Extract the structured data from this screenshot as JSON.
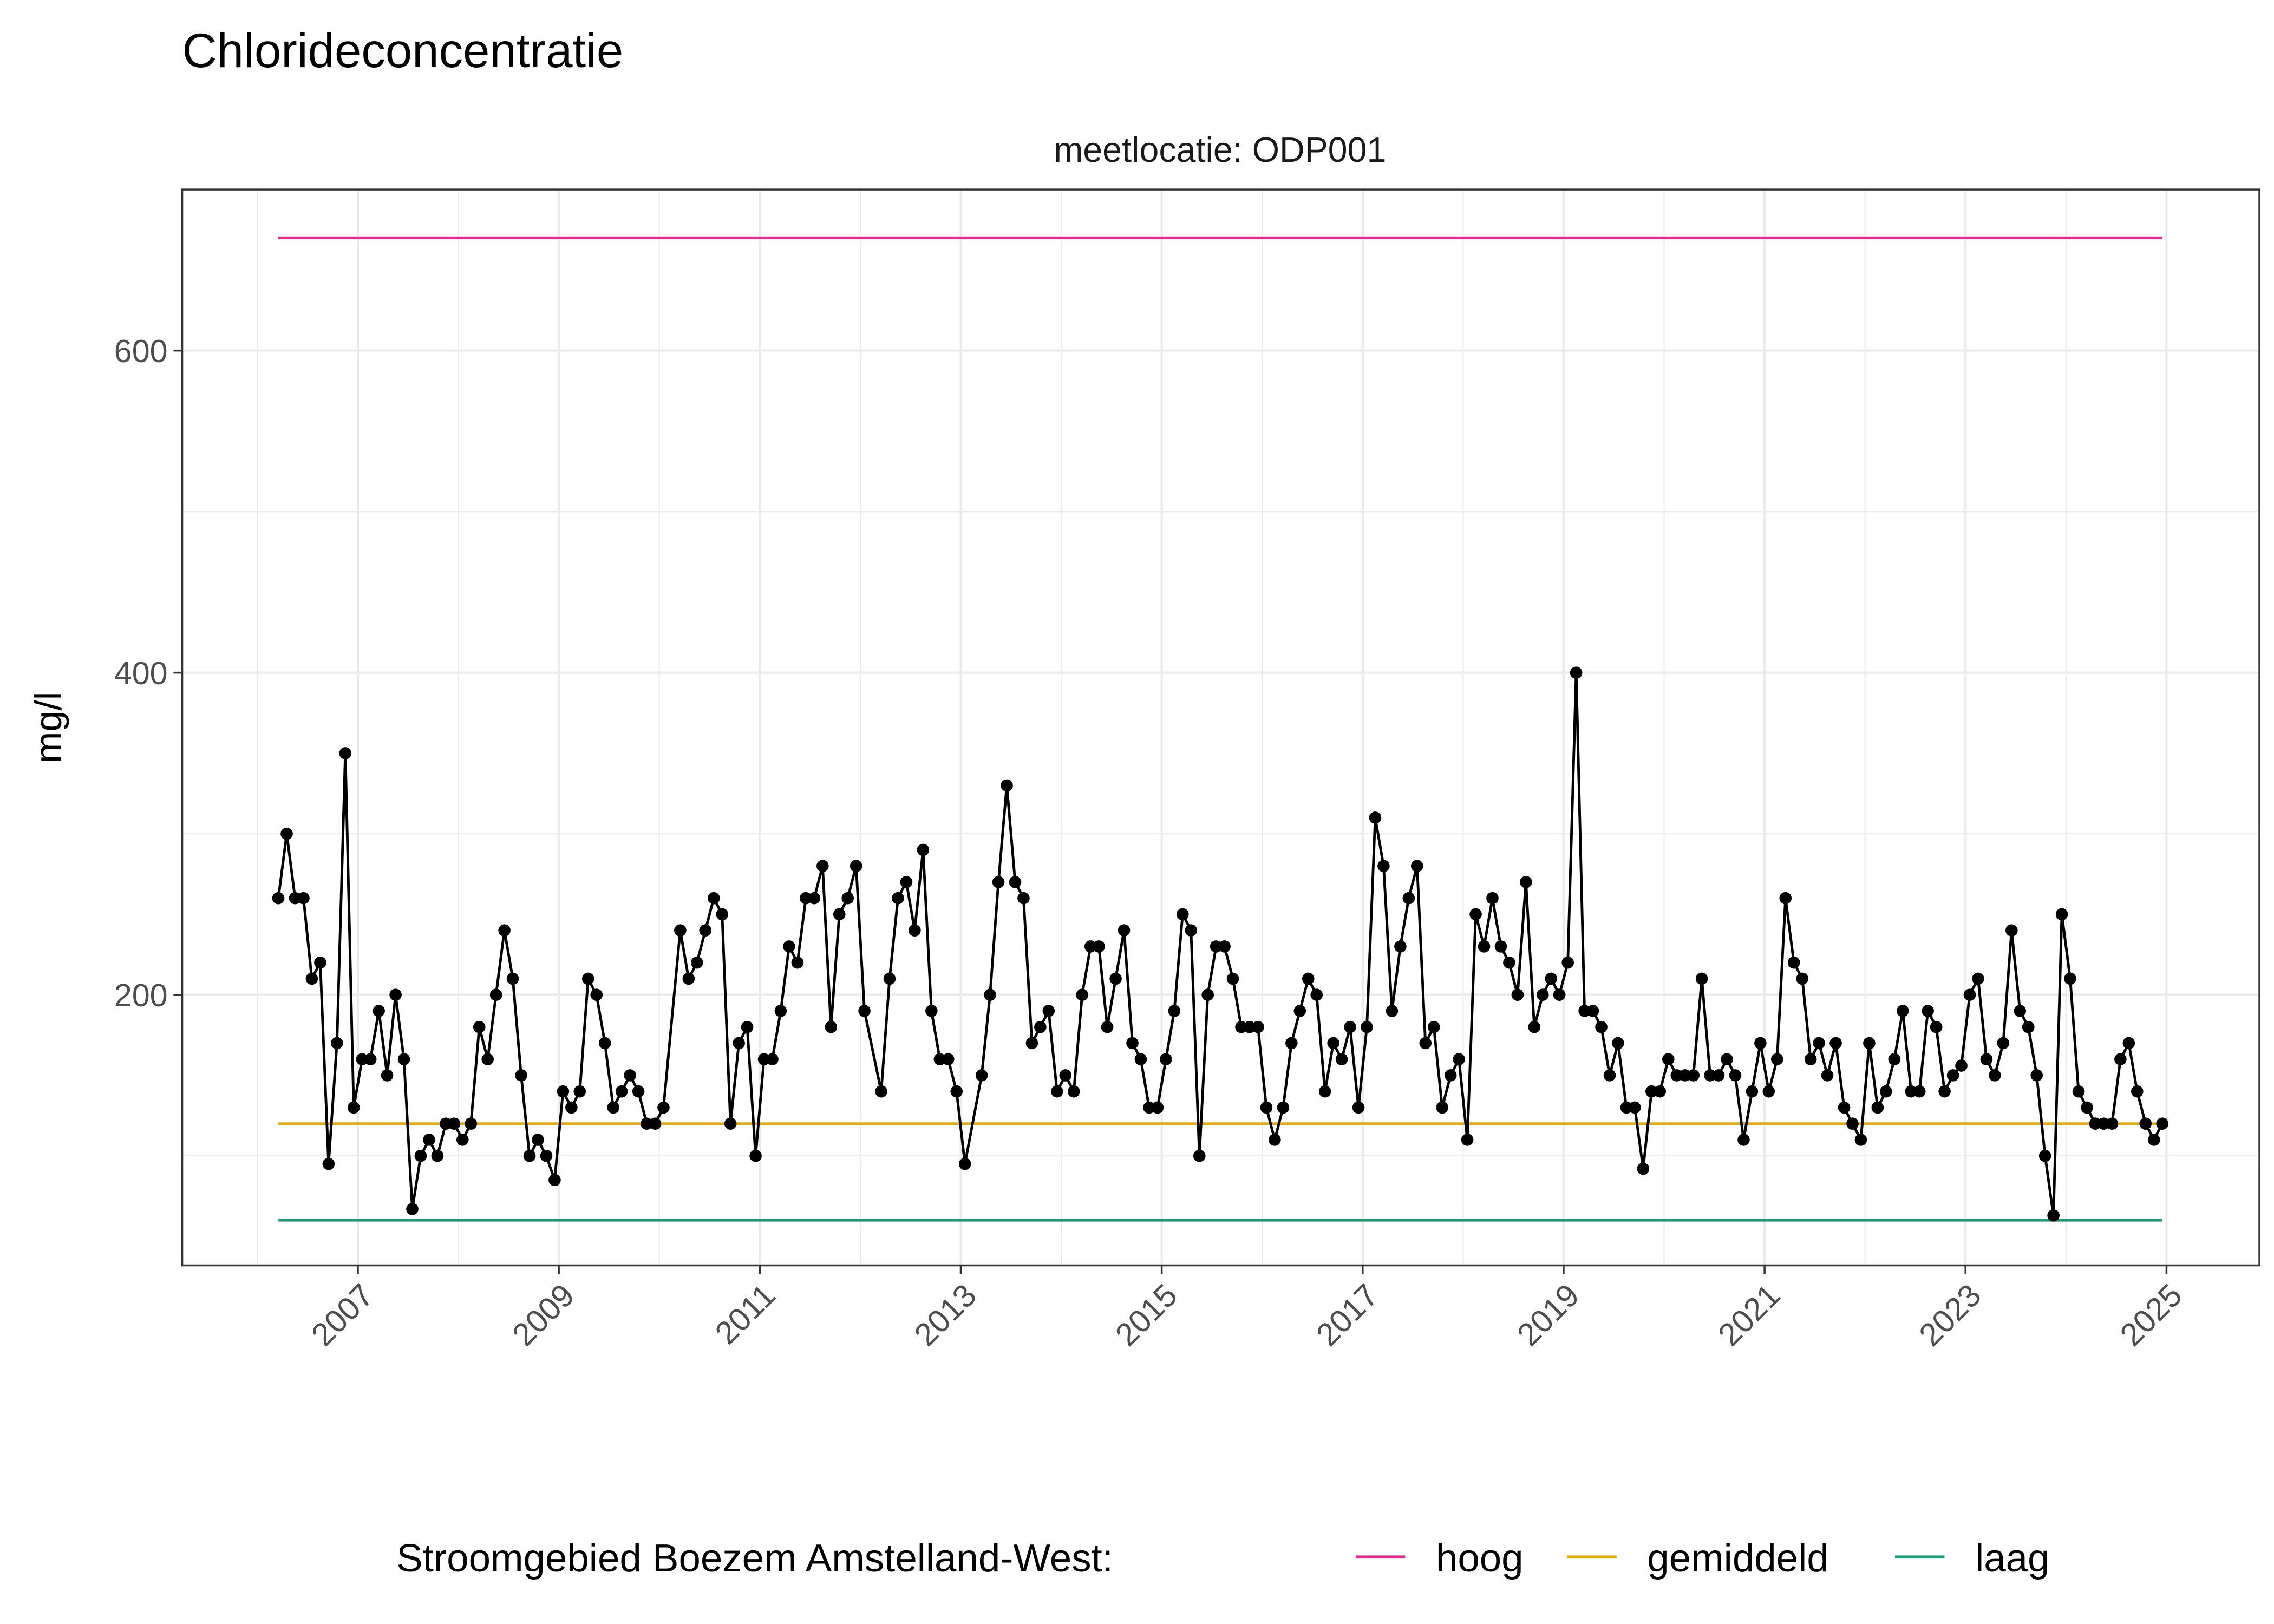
{
  "chart_data": {
    "type": "line",
    "title": "Chlorideconcentratie",
    "facet_label": "meetlocatie: ODP001",
    "xlabel": "",
    "ylabel": "mg/l",
    "xlim": [
      "2005-04",
      "2025-11"
    ],
    "ylim": [
      32,
      700
    ],
    "x_ticks": [
      "2007",
      "2009",
      "2011",
      "2013",
      "2015",
      "2017",
      "2019",
      "2021",
      "2023",
      "2025"
    ],
    "y_ticks": [
      200,
      400,
      600
    ],
    "grid": true,
    "legend": {
      "position": "bottom",
      "title": "Stroomgebied Boezem Amstelland-West:",
      "entries": [
        {
          "label": "hoog",
          "color": "#E7298A"
        },
        {
          "label": "gemiddeld",
          "color": "#E6AB02"
        },
        {
          "label": "laag",
          "color": "#1B9E77"
        }
      ]
    },
    "reference_lines": [
      {
        "name": "hoog",
        "value": 670,
        "color": "#E7298A"
      },
      {
        "name": "gemiddeld",
        "value": 120,
        "color": "#E6AB02"
      },
      {
        "name": "laag",
        "value": 60,
        "color": "#1B9E77"
      }
    ],
    "series": [
      {
        "color": "#000000",
        "points": [
          [
            "2006-03",
            260
          ],
          [
            "2006-04",
            300
          ],
          [
            "2006-05",
            260
          ],
          [
            "2006-06",
            260
          ],
          [
            "2006-07",
            210
          ],
          [
            "2006-08",
            220
          ],
          [
            "2006-09",
            95
          ],
          [
            "2006-10",
            170
          ],
          [
            "2006-11",
            350
          ],
          [
            "2006-12",
            130
          ],
          [
            "2007-01",
            160
          ],
          [
            "2007-02",
            160
          ],
          [
            "2007-03",
            190
          ],
          [
            "2007-04",
            150
          ],
          [
            "2007-05",
            200
          ],
          [
            "2007-06",
            160
          ],
          [
            "2007-07",
            67
          ],
          [
            "2007-08",
            100
          ],
          [
            "2007-09",
            110
          ],
          [
            "2007-10",
            100
          ],
          [
            "2007-11",
            120
          ],
          [
            "2007-12",
            120
          ],
          [
            "2008-01",
            110
          ],
          [
            "2008-02",
            120
          ],
          [
            "2008-03",
            180
          ],
          [
            "2008-04",
            160
          ],
          [
            "2008-05",
            200
          ],
          [
            "2008-06",
            240
          ],
          [
            "2008-07",
            210
          ],
          [
            "2008-08",
            150
          ],
          [
            "2008-09",
            100
          ],
          [
            "2008-10",
            110
          ],
          [
            "2008-11",
            100
          ],
          [
            "2008-12",
            85
          ],
          [
            "2009-01",
            140
          ],
          [
            "2009-02",
            130
          ],
          [
            "2009-03",
            140
          ],
          [
            "2009-04",
            210
          ],
          [
            "2009-05",
            200
          ],
          [
            "2009-06",
            170
          ],
          [
            "2009-07",
            130
          ],
          [
            "2009-08",
            140
          ],
          [
            "2009-09",
            150
          ],
          [
            "2009-10",
            140
          ],
          [
            "2009-11",
            120
          ],
          [
            "2009-12",
            120
          ],
          [
            "2010-01",
            130
          ],
          [
            "2010-03",
            240
          ],
          [
            "2010-04",
            210
          ],
          [
            "2010-05",
            220
          ],
          [
            "2010-06",
            240
          ],
          [
            "2010-07",
            260
          ],
          [
            "2010-08",
            250
          ],
          [
            "2010-09",
            120
          ],
          [
            "2010-10",
            170
          ],
          [
            "2010-11",
            180
          ],
          [
            "2010-12",
            100
          ],
          [
            "2011-01",
            160
          ],
          [
            "2011-02",
            160
          ],
          [
            "2011-03",
            190
          ],
          [
            "2011-04",
            230
          ],
          [
            "2011-05",
            220
          ],
          [
            "2011-06",
            260
          ],
          [
            "2011-07",
            260
          ],
          [
            "2011-08",
            280
          ],
          [
            "2011-09",
            180
          ],
          [
            "2011-10",
            250
          ],
          [
            "2011-11",
            260
          ],
          [
            "2011-12",
            280
          ],
          [
            "2012-01",
            190
          ],
          [
            "2012-03",
            140
          ],
          [
            "2012-04",
            210
          ],
          [
            "2012-05",
            260
          ],
          [
            "2012-06",
            270
          ],
          [
            "2012-07",
            240
          ],
          [
            "2012-08",
            290
          ],
          [
            "2012-09",
            190
          ],
          [
            "2012-10",
            160
          ],
          [
            "2012-11",
            160
          ],
          [
            "2012-12",
            140
          ],
          [
            "2013-01",
            95
          ],
          [
            "2013-03",
            150
          ],
          [
            "2013-04",
            200
          ],
          [
            "2013-05",
            270
          ],
          [
            "2013-06",
            330
          ],
          [
            "2013-07",
            270
          ],
          [
            "2013-08",
            260
          ],
          [
            "2013-09",
            170
          ],
          [
            "2013-10",
            180
          ],
          [
            "2013-11",
            190
          ],
          [
            "2013-12",
            140
          ],
          [
            "2014-01",
            150
          ],
          [
            "2014-02",
            140
          ],
          [
            "2014-03",
            200
          ],
          [
            "2014-04",
            230
          ],
          [
            "2014-05",
            230
          ],
          [
            "2014-06",
            180
          ],
          [
            "2014-07",
            210
          ],
          [
            "2014-08",
            240
          ],
          [
            "2014-09",
            170
          ],
          [
            "2014-10",
            160
          ],
          [
            "2014-11",
            130
          ],
          [
            "2014-12",
            130
          ],
          [
            "2015-01",
            160
          ],
          [
            "2015-02",
            190
          ],
          [
            "2015-03",
            250
          ],
          [
            "2015-04",
            240
          ],
          [
            "2015-05",
            100
          ],
          [
            "2015-06",
            200
          ],
          [
            "2015-07",
            230
          ],
          [
            "2015-08",
            230
          ],
          [
            "2015-09",
            210
          ],
          [
            "2015-10",
            180
          ],
          [
            "2015-11",
            180
          ],
          [
            "2015-12",
            180
          ],
          [
            "2016-01",
            130
          ],
          [
            "2016-02",
            110
          ],
          [
            "2016-03",
            130
          ],
          [
            "2016-04",
            170
          ],
          [
            "2016-05",
            190
          ],
          [
            "2016-06",
            210
          ],
          [
            "2016-07",
            200
          ],
          [
            "2016-08",
            140
          ],
          [
            "2016-09",
            170
          ],
          [
            "2016-10",
            160
          ],
          [
            "2016-11",
            180
          ],
          [
            "2016-12",
            130
          ],
          [
            "2017-01",
            180
          ],
          [
            "2017-02",
            310
          ],
          [
            "2017-03",
            280
          ],
          [
            "2017-04",
            190
          ],
          [
            "2017-05",
            230
          ],
          [
            "2017-06",
            260
          ],
          [
            "2017-07",
            280
          ],
          [
            "2017-08",
            170
          ],
          [
            "2017-09",
            180
          ],
          [
            "2017-10",
            130
          ],
          [
            "2017-11",
            150
          ],
          [
            "2017-12",
            160
          ],
          [
            "2018-01",
            110
          ],
          [
            "2018-02",
            250
          ],
          [
            "2018-03",
            230
          ],
          [
            "2018-04",
            260
          ],
          [
            "2018-05",
            230
          ],
          [
            "2018-06",
            220
          ],
          [
            "2018-07",
            200
          ],
          [
            "2018-08",
            270
          ],
          [
            "2018-09",
            180
          ],
          [
            "2018-10",
            200
          ],
          [
            "2018-11",
            210
          ],
          [
            "2018-12",
            200
          ],
          [
            "2019-01",
            220
          ],
          [
            "2019-02",
            400
          ],
          [
            "2019-03",
            190
          ],
          [
            "2019-04",
            190
          ],
          [
            "2019-05",
            180
          ],
          [
            "2019-06",
            150
          ],
          [
            "2019-07",
            170
          ],
          [
            "2019-08",
            130
          ],
          [
            "2019-09",
            130
          ],
          [
            "2019-10",
            92
          ],
          [
            "2019-11",
            140
          ],
          [
            "2019-12",
            140
          ],
          [
            "2020-01",
            160
          ],
          [
            "2020-02",
            150
          ],
          [
            "2020-03",
            150
          ],
          [
            "2020-04",
            150
          ],
          [
            "2020-05",
            210
          ],
          [
            "2020-06",
            150
          ],
          [
            "2020-07",
            150
          ],
          [
            "2020-08",
            160
          ],
          [
            "2020-09",
            150
          ],
          [
            "2020-10",
            110
          ],
          [
            "2020-11",
            140
          ],
          [
            "2020-12",
            170
          ],
          [
            "2021-01",
            140
          ],
          [
            "2021-02",
            160
          ],
          [
            "2021-03",
            260
          ],
          [
            "2021-04",
            220
          ],
          [
            "2021-05",
            210
          ],
          [
            "2021-06",
            160
          ],
          [
            "2021-07",
            170
          ],
          [
            "2021-08",
            150
          ],
          [
            "2021-09",
            170
          ],
          [
            "2021-10",
            130
          ],
          [
            "2021-11",
            120
          ],
          [
            "2021-12",
            110
          ],
          [
            "2022-01",
            170
          ],
          [
            "2022-02",
            130
          ],
          [
            "2022-03",
            140
          ],
          [
            "2022-04",
            160
          ],
          [
            "2022-05",
            190
          ],
          [
            "2022-06",
            140
          ],
          [
            "2022-07",
            140
          ],
          [
            "2022-08",
            190
          ],
          [
            "2022-09",
            180
          ],
          [
            "2022-10",
            140
          ],
          [
            "2022-11",
            150
          ],
          [
            "2022-12",
            156
          ],
          [
            "2023-01",
            200
          ],
          [
            "2023-02",
            210
          ],
          [
            "2023-03",
            160
          ],
          [
            "2023-04",
            150
          ],
          [
            "2023-05",
            170
          ],
          [
            "2023-06",
            240
          ],
          [
            "2023-07",
            190
          ],
          [
            "2023-08",
            180
          ],
          [
            "2023-09",
            150
          ],
          [
            "2023-10",
            100
          ],
          [
            "2023-11",
            63
          ],
          [
            "2023-12",
            250
          ],
          [
            "2024-01",
            210
          ],
          [
            "2024-02",
            140
          ],
          [
            "2024-03",
            130
          ],
          [
            "2024-04",
            120
          ],
          [
            "2024-05",
            120
          ],
          [
            "2024-06",
            120
          ],
          [
            "2024-07",
            160
          ],
          [
            "2024-08",
            170
          ],
          [
            "2024-09",
            140
          ],
          [
            "2024-10",
            120
          ],
          [
            "2024-11",
            110
          ],
          [
            "2024-12",
            120
          ]
        ]
      }
    ]
  }
}
